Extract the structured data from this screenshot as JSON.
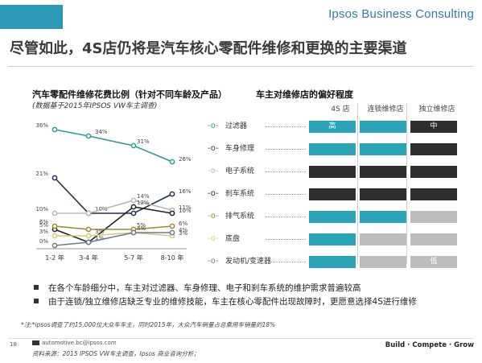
{
  "header": {
    "brand": "Ipsos Business Consulting",
    "title": "尽管如此，4S店仍将是汽车核心零配件维修和更换的主要渠道"
  },
  "left_chart": {
    "title": "汽车零配件维修花费比例（针对不同车龄及产品）",
    "subtitle": "(数据基于2015年IPSOS VW车主调查)"
  },
  "right_chart": {
    "title": "车主对维修店的偏好程度",
    "columns": [
      "4S 店",
      "连锁维修店",
      "独立维修店"
    ]
  },
  "chart_data": [
    {
      "type": "line",
      "categories": [
        "1-2 年",
        "3-4 年",
        "5-7 年",
        "8-10 年"
      ],
      "ylim": [
        0,
        40
      ],
      "series": [
        {
          "name": "过滤器",
          "color": "#2a9d8f",
          "marker": "circle",
          "values": [
            36,
            34,
            31,
            26
          ],
          "labels": [
            "36%",
            "34%",
            "31%",
            "26%"
          ]
        },
        {
          "name": "车身修理",
          "color": "#1f2f4f",
          "marker": "circle",
          "values": [
            21,
            10,
            10,
            16
          ],
          "labels": [
            "21%",
            "10%",
            "",
            "16%"
          ]
        },
        {
          "name": "电子系统",
          "color": "#b8b8b8",
          "marker": "circle",
          "values": [
            10,
            10,
            14,
            11
          ],
          "labels": [
            "10%",
            "",
            "14%",
            "11%"
          ]
        },
        {
          "name": "刹车系统",
          "color": "#222222",
          "marker": "circle",
          "values": [
            5,
            1,
            12,
            10
          ],
          "labels": [
            "5%",
            "1%",
            "12%",
            "10%"
          ]
        },
        {
          "name": "排气系统",
          "color": "#9a8a2a",
          "marker": "circle",
          "values": [
            6,
            5,
            5,
            6
          ],
          "labels": [
            "6%",
            "",
            "5%",
            "6%"
          ]
        },
        {
          "name": "底盘",
          "color": "#d9c97a",
          "marker": "circle",
          "values": [
            3,
            3,
            4,
            3
          ],
          "labels": [
            "3%",
            "3%",
            "4%",
            "3%"
          ]
        },
        {
          "name": "发动机/变速器",
          "color": "#6e7b8b",
          "marker": "circle",
          "values": [
            0,
            1,
            4,
            4
          ],
          "labels": [
            "0%",
            "",
            "",
            "4%"
          ]
        }
      ]
    },
    {
      "type": "heatmap",
      "rows": [
        "过滤器",
        "车身修理",
        "电子系统",
        "刹车系统",
        "排气系统",
        "底盘",
        "发动机/变速器"
      ],
      "columns": [
        "4S 店",
        "连锁维修店",
        "独立维修店"
      ],
      "cells": [
        [
          {
            "level": "teal",
            "label": "高"
          },
          {
            "level": "teal",
            "label": ""
          },
          {
            "level": "dark",
            "label": "中"
          }
        ],
        [
          {
            "level": "teal",
            "label": ""
          },
          {
            "level": "teal",
            "label": ""
          },
          {
            "level": "dark",
            "label": ""
          }
        ],
        [
          {
            "level": "dark",
            "label": ""
          },
          {
            "level": "dark",
            "label": ""
          },
          {
            "level": "dark",
            "label": ""
          }
        ],
        [
          {
            "level": "dark",
            "label": ""
          },
          {
            "level": "dark",
            "label": ""
          },
          {
            "level": "dark",
            "label": ""
          }
        ],
        [
          {
            "level": "teal",
            "label": ""
          },
          {
            "level": "teal",
            "label": ""
          },
          {
            "level": "grey",
            "label": ""
          }
        ],
        [
          {
            "level": "teal",
            "label": ""
          },
          {
            "level": "grey",
            "label": ""
          },
          {
            "level": "grey",
            "label": ""
          }
        ],
        [
          {
            "level": "teal",
            "label": ""
          },
          {
            "level": "grey",
            "label": ""
          },
          {
            "level": "grey",
            "label": "低"
          }
        ]
      ],
      "colors": {
        "teal": "#2aa4b6",
        "dark": "#2e2e2e",
        "grey": "#bdbdbd"
      }
    }
  ],
  "bullets": [
    "在各个车龄细分中，车主对过滤器、车身修理、电子和刹车系统的维护需求普遍较高",
    "由于连锁/独立维修店缺乏专业的维修技能，车主在核心零配件出现故障时，更愿意选择4S进行维修"
  ],
  "footnote": "*注:*ipsos调查了约15,000位大众车车主，同时2015年，大众汽车销量占总乘用车销量的18%",
  "footer": {
    "page_number": "18",
    "email": "automotive.bc@ipsos.com",
    "source": "资料来源：2015 IPSOS VW车主调查，Ipsos 商业咨询分析；",
    "tagline": "Build · Compete · Grow"
  }
}
